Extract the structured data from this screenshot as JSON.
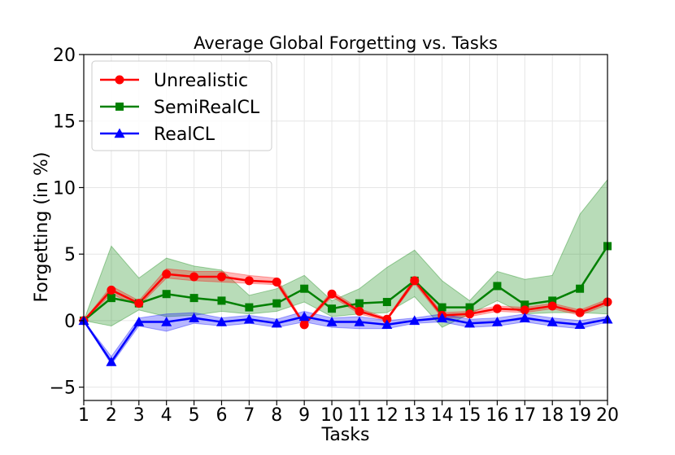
{
  "chart_data": {
    "type": "line",
    "title": "Average Global Forgetting vs. Tasks",
    "xlabel": "Tasks",
    "ylabel": "Forgetting (in %)",
    "x": [
      1,
      2,
      3,
      4,
      5,
      6,
      7,
      8,
      9,
      10,
      11,
      12,
      13,
      14,
      15,
      16,
      17,
      18,
      19,
      20
    ],
    "xticks": [
      "1",
      "2",
      "3",
      "4",
      "5",
      "6",
      "7",
      "8",
      "9",
      "10",
      "11",
      "12",
      "13",
      "14",
      "15",
      "16",
      "17",
      "18",
      "19",
      "20"
    ],
    "yticks": [
      "−5",
      "0",
      "5",
      "10",
      "15",
      "20"
    ],
    "ytick_values": [
      -5,
      0,
      5,
      10,
      15,
      20
    ],
    "xlim": [
      1,
      20
    ],
    "ylim": [
      -6,
      20
    ],
    "grid": true,
    "legend_position": "top-left",
    "series": [
      {
        "name": "Unrealistic",
        "color": "#ff0000",
        "marker": "circle",
        "values": [
          0,
          2.3,
          1.3,
          3.5,
          3.3,
          3.3,
          3.0,
          2.9,
          -0.3,
          2.0,
          0.7,
          0.1,
          3.0,
          0.4,
          0.5,
          0.9,
          0.8,
          1.1,
          0.6,
          1.4
        ],
        "lower": [
          0,
          2.0,
          1.1,
          3.2,
          3.0,
          2.9,
          2.8,
          2.7,
          -0.4,
          1.8,
          0.5,
          0.0,
          2.8,
          0.2,
          0.3,
          0.7,
          0.6,
          0.9,
          0.4,
          1.2
        ],
        "upper": [
          0,
          2.6,
          1.5,
          3.9,
          3.7,
          3.7,
          3.4,
          3.2,
          -0.2,
          2.2,
          0.9,
          0.2,
          3.2,
          0.6,
          0.7,
          1.1,
          1.0,
          1.3,
          0.8,
          1.6
        ]
      },
      {
        "name": "SemiRealCL",
        "color": "#008000",
        "marker": "square",
        "values": [
          0,
          1.7,
          1.3,
          2.0,
          1.7,
          1.5,
          1.0,
          1.3,
          2.4,
          0.9,
          1.3,
          1.4,
          3.0,
          1.0,
          1.0,
          2.6,
          1.2,
          1.5,
          2.4,
          5.6
        ],
        "lower": [
          0,
          -0.4,
          0.8,
          0.3,
          0.4,
          0.7,
          0.5,
          0.7,
          1.4,
          0.3,
          0.5,
          0.6,
          1.8,
          -0.5,
          0.5,
          1.5,
          0.5,
          0.6,
          0.6,
          0.5
        ],
        "upper": [
          0,
          5.6,
          3.2,
          4.7,
          4.1,
          3.8,
          1.9,
          2.4,
          3.4,
          1.5,
          2.4,
          4.0,
          5.3,
          3.0,
          1.5,
          3.7,
          3.1,
          3.4,
          8.0,
          10.6
        ]
      },
      {
        "name": "RealCL",
        "color": "#0000ff",
        "marker": "triangle",
        "values": [
          0,
          -3.1,
          -0.1,
          -0.1,
          0.2,
          -0.1,
          0.1,
          -0.2,
          0.3,
          -0.1,
          -0.1,
          -0.3,
          0.0,
          0.2,
          -0.2,
          -0.1,
          0.2,
          -0.1,
          -0.3,
          0.1
        ],
        "lower": [
          0,
          -3.3,
          -0.4,
          -0.8,
          -0.2,
          -0.4,
          -0.2,
          -0.5,
          -0.1,
          -0.5,
          -0.6,
          -0.6,
          -0.2,
          -0.1,
          -0.5,
          -0.4,
          -0.1,
          -0.4,
          -0.6,
          -0.1
        ],
        "upper": [
          0,
          -2.7,
          0.2,
          0.5,
          0.6,
          0.2,
          0.4,
          0.1,
          0.7,
          0.2,
          0.3,
          0.0,
          0.2,
          0.5,
          0.1,
          0.2,
          0.5,
          0.2,
          0.0,
          0.3
        ]
      }
    ]
  }
}
